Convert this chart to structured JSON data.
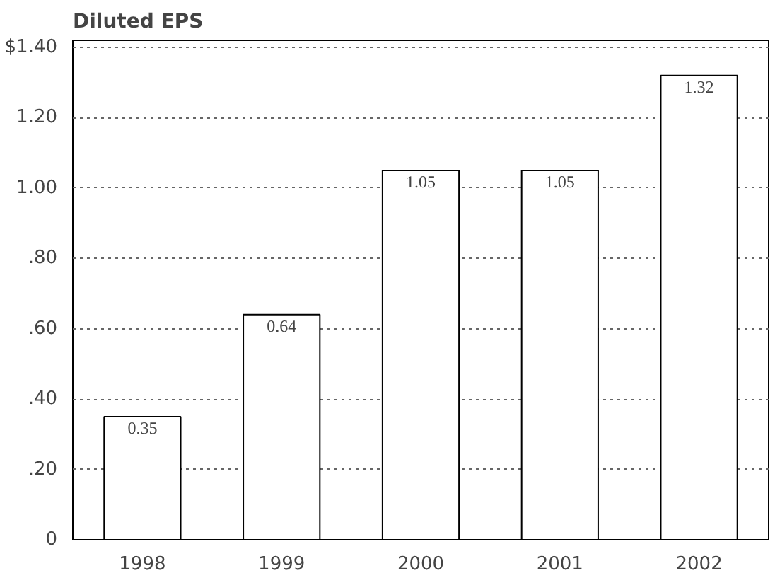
{
  "chart_data": {
    "type": "bar",
    "title": "Diluted EPS",
    "categories": [
      "1998",
      "1999",
      "2000",
      "2001",
      "2002"
    ],
    "values": [
      0.35,
      0.64,
      1.05,
      1.05,
      1.32
    ],
    "color": "#ffffff",
    "ylim": [
      0,
      1.42
    ],
    "yticks": [
      {
        "value": 0,
        "label": "0"
      },
      {
        "value": 0.2,
        "label": ".20"
      },
      {
        "value": 0.4,
        "label": ".40"
      },
      {
        "value": 0.6,
        "label": ".60"
      },
      {
        "value": 0.8,
        "label": ".80"
      },
      {
        "value": 1.0,
        "label": "1.00"
      },
      {
        "value": 1.2,
        "label": "1.20"
      },
      {
        "value": 1.4,
        "label": "$1.40"
      }
    ],
    "grid": "y",
    "data_labels": true
  }
}
